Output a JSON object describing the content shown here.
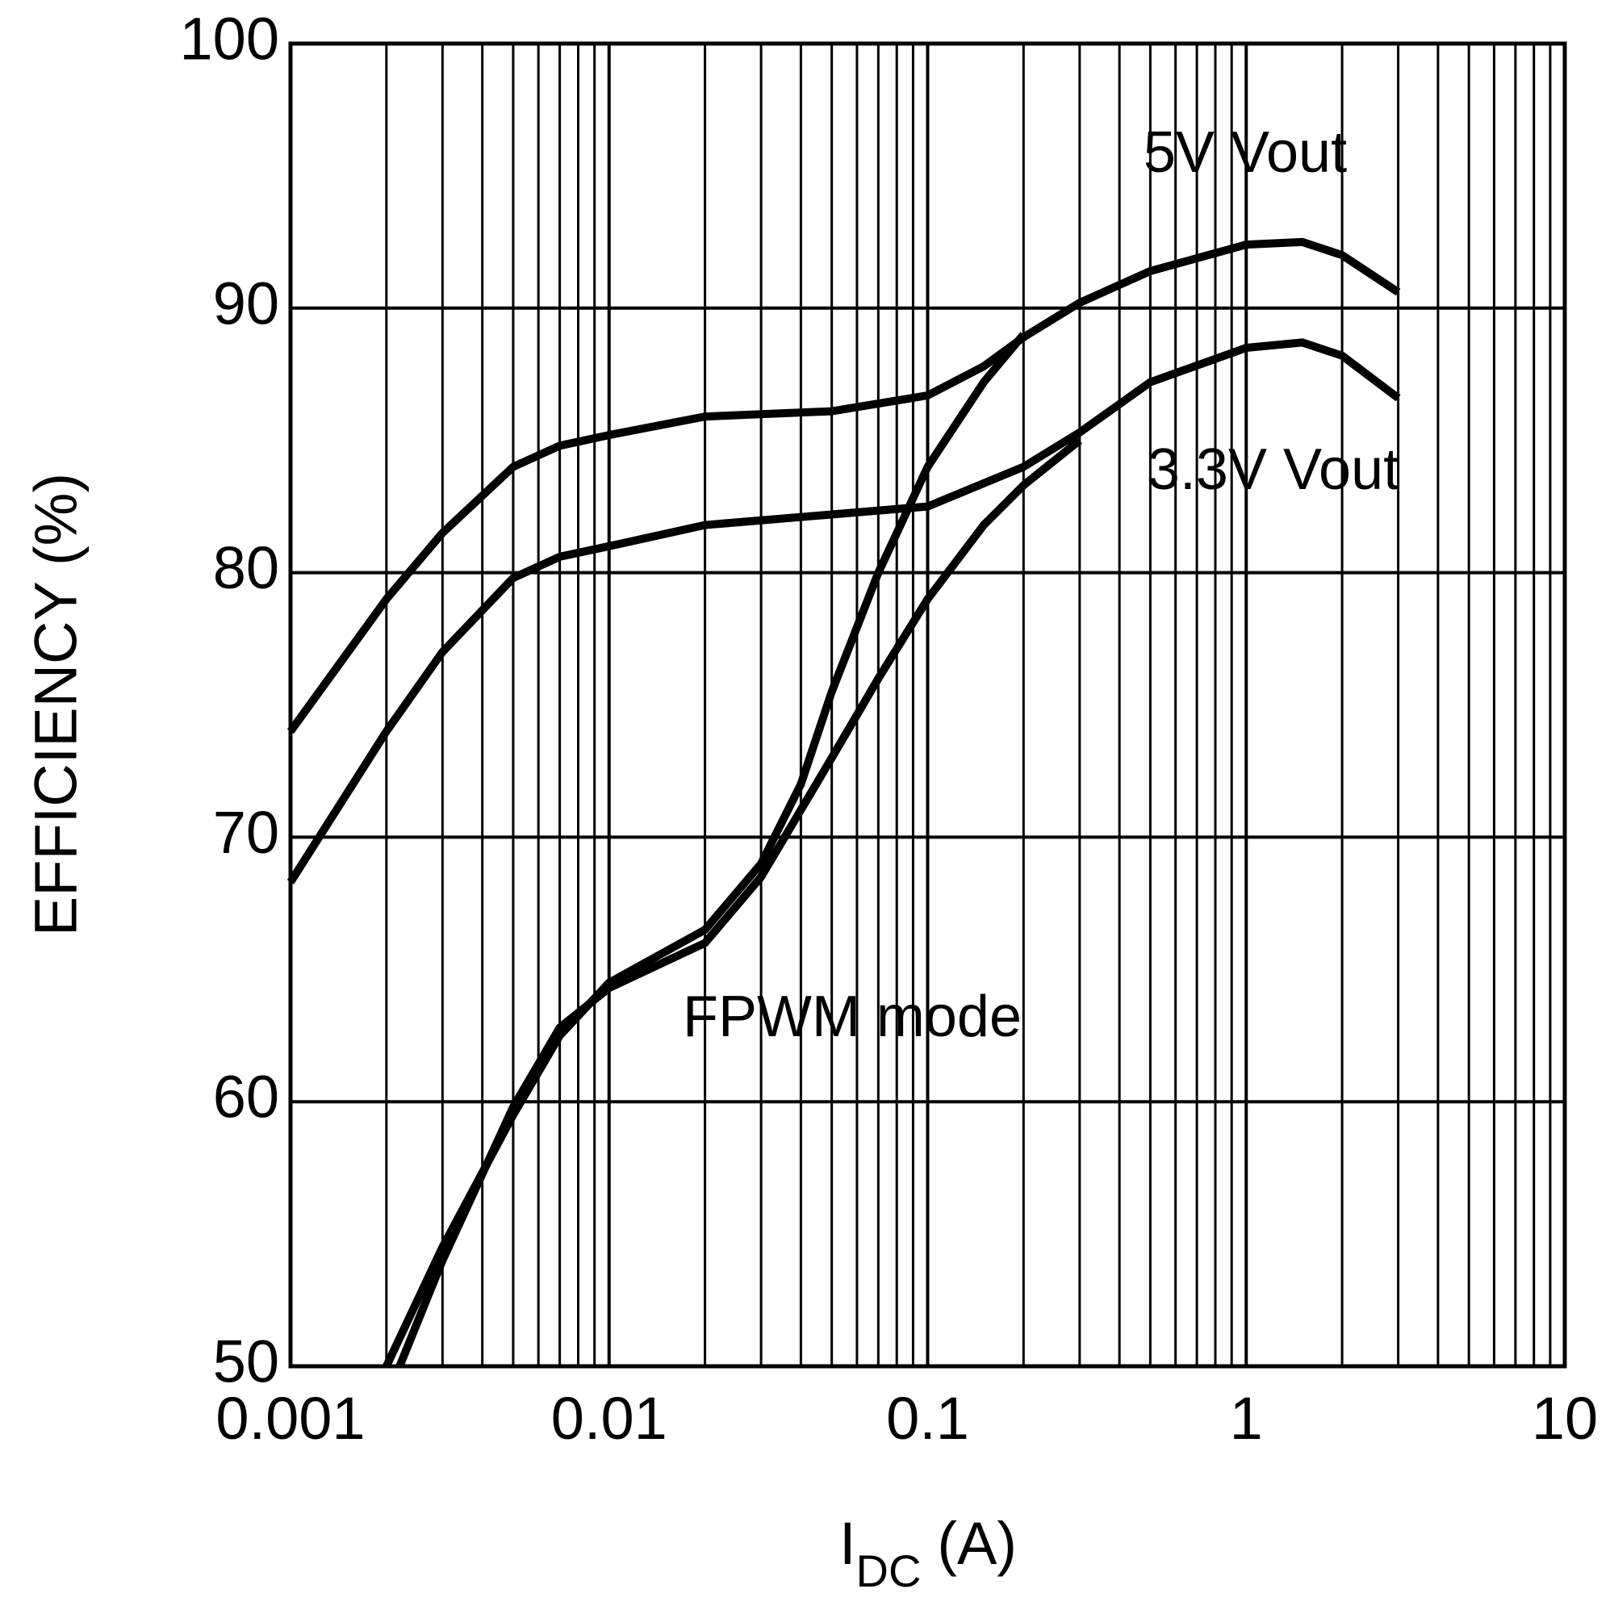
{
  "chart_data": {
    "type": "line",
    "y_label": "EFFICIENCY (%)",
    "x_label": "I",
    "x_label_subscript": "DC",
    "x_label_suffix": "(A)",
    "x_scale": "log",
    "grid": true,
    "color": "#000000",
    "xlim": [
      0.001,
      10
    ],
    "ylim": [
      50,
      100
    ],
    "xticks": [
      0.001,
      0.01,
      0.1,
      1,
      10
    ],
    "yticks": [
      50,
      60,
      70,
      80,
      90,
      100
    ],
    "series": [
      {
        "color": "#000000",
        "x": [
          0.001,
          0.002,
          0.003,
          0.005,
          0.007,
          0.01,
          0.02,
          0.05,
          0.1,
          0.15,
          0.2,
          0.3,
          0.5,
          1,
          1.5,
          2,
          3
        ],
        "values": [
          74,
          79,
          81.5,
          84,
          84.8,
          85.2,
          85.9,
          86.1,
          86.7,
          87.8,
          88.9,
          90.2,
          91.4,
          92.4,
          92.5,
          92,
          90.6
        ]
      },
      {
        "color": "#000000",
        "x": [
          0.001,
          0.002,
          0.003,
          0.005,
          0.007,
          0.01,
          0.02,
          0.05,
          0.1,
          0.2,
          0.3,
          0.5,
          1,
          1.5,
          2,
          3
        ],
        "values": [
          68.3,
          74,
          77,
          79.8,
          80.6,
          81,
          81.8,
          82.2,
          82.5,
          84,
          85.3,
          87.2,
          88.5,
          88.7,
          88.2,
          86.6
        ]
      },
      {
        "color": "#000000",
        "x": [
          0.002,
          0.003,
          0.005,
          0.007,
          0.01,
          0.02,
          0.03,
          0.04,
          0.05,
          0.07,
          0.1,
          0.15,
          0.2
        ],
        "values": [
          50,
          54.5,
          59.5,
          62.5,
          64.5,
          66.5,
          69,
          72,
          75.5,
          80,
          84,
          87.2,
          89
        ]
      },
      {
        "color": "#000000",
        "x": [
          0.0022,
          0.003,
          0.005,
          0.007,
          0.01,
          0.02,
          0.03,
          0.05,
          0.07,
          0.1,
          0.15,
          0.2,
          0.3
        ],
        "values": [
          50,
          54,
          59.8,
          62.8,
          64.3,
          66,
          68.5,
          73,
          76,
          79,
          81.8,
          83.3,
          85
        ]
      }
    ],
    "annotations": [
      "5V Vout",
      "3.3V Vout",
      "FPWM mode"
    ]
  }
}
